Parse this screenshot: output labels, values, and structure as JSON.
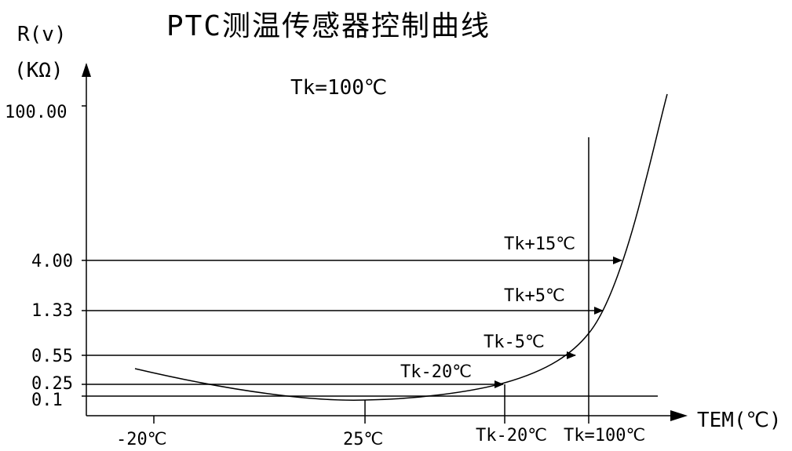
{
  "title": "PTC测温传感器控制曲线",
  "subtitle": "Tk=100℃",
  "axes": {
    "y_label_line1": "R(v)",
    "y_label_line2": "(KΩ)",
    "x_label": "TEM(℃)"
  },
  "y_ticks": [
    "100.00",
    "4.00",
    "1.33",
    "0.55",
    "0.25",
    "0.1"
  ],
  "x_ticks": [
    "-20℃",
    "25℃",
    "Tk-20℃",
    "Tk=100℃"
  ],
  "markers": [
    "Tk+15℃",
    "Tk+5℃",
    "Tk-5℃",
    "Tk-20℃"
  ],
  "colors": {
    "line": "#000000",
    "background": "#ffffff"
  }
}
